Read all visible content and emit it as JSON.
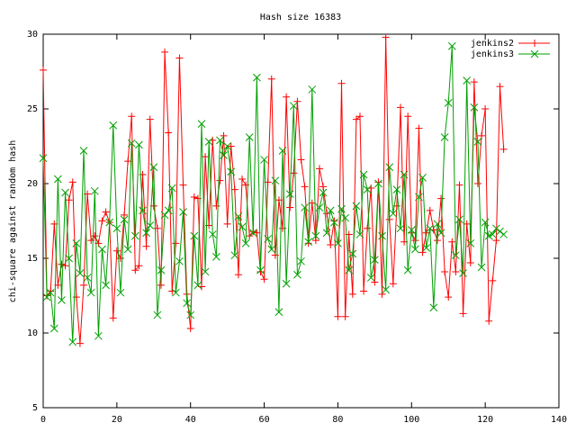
{
  "chart_data": {
    "type": "line",
    "title": "Hash size 16383",
    "y_label": "chi-square against random hash",
    "x": [
      0,
      1,
      2,
      3,
      4,
      5,
      6,
      7,
      8,
      9,
      10,
      11,
      12,
      13,
      14,
      15,
      16,
      17,
      18,
      19,
      20,
      21,
      22,
      23,
      24,
      25,
      26,
      27,
      28,
      29,
      30,
      31,
      32,
      33,
      34,
      35,
      36,
      37,
      38,
      39,
      40,
      41,
      42,
      43,
      44,
      45,
      46,
      47,
      48,
      49,
      50,
      51,
      52,
      53,
      54,
      55,
      56,
      57,
      58,
      59,
      60,
      61,
      62,
      63,
      64,
      65,
      66,
      67,
      68,
      69,
      70,
      71,
      72,
      73,
      74,
      75,
      76,
      77,
      78,
      79,
      80,
      81,
      82,
      83,
      84,
      85,
      86,
      87,
      88,
      89,
      90,
      91,
      92,
      93,
      94,
      95,
      96,
      97,
      98,
      99,
      100,
      101,
      102,
      103,
      104,
      105,
      106,
      107,
      108,
      109,
      110,
      111,
      112,
      113,
      114,
      115,
      116,
      117,
      118,
      119,
      120,
      121,
      122,
      123,
      124,
      125
    ],
    "series": [
      {
        "name": "jenkins2",
        "color": "#ff0000",
        "marker": "plus",
        "values": [
          27.6,
          12.5,
          12.8,
          17.3,
          13.2,
          14.6,
          14.5,
          18.9,
          20.1,
          12.4,
          9.3,
          13.2,
          19.3,
          16.2,
          16.5,
          16.0,
          17.5,
          18.1,
          17.4,
          11.0,
          15.5,
          15.0,
          17.9,
          21.5,
          24.5,
          14.2,
          14.5,
          20.6,
          15.8,
          24.3,
          18.5,
          17.0,
          13.2,
          28.8,
          23.4,
          12.8,
          16.0,
          28.4,
          19.9,
          12.6,
          10.3,
          19.1,
          19.0,
          13.1,
          21.8,
          17.2,
          22.9,
          18.5,
          20.2,
          23.2,
          17.3,
          22.5,
          19.6,
          13.9,
          20.3,
          19.9,
          16.5,
          16.8,
          16.7,
          14.1,
          13.6,
          20.1,
          27.0,
          15.2,
          18.9,
          17.0,
          25.8,
          18.4,
          20.7,
          25.5,
          21.6,
          19.8,
          16.0,
          18.7,
          16.2,
          21.0,
          19.8,
          18.0,
          15.9,
          17.5,
          11.1,
          26.7,
          11.1,
          16.6,
          12.6,
          24.3,
          24.5,
          12.8,
          17.0,
          19.7,
          13.4,
          20.1,
          12.6,
          29.8,
          17.6,
          13.3,
          18.5,
          25.1,
          16.1,
          24.5,
          16.7,
          16.2,
          23.7,
          15.4,
          16.7,
          18.2,
          16.9,
          16.2,
          19.0,
          14.1,
          12.4,
          16.1,
          14.1,
          19.9,
          11.3,
          17.3,
          14.7,
          26.8,
          20.0,
          23.2,
          25.0,
          10.8,
          13.5,
          16.2,
          26.5,
          22.3
        ]
      },
      {
        "name": "jenkins3",
        "color": "#00a000",
        "marker": "cross",
        "values": [
          21.7,
          12.4,
          12.7,
          10.3,
          20.3,
          12.2,
          19.4,
          15.0,
          9.4,
          16.0,
          14.0,
          22.2,
          13.7,
          12.7,
          19.5,
          9.8,
          15.6,
          13.2,
          17.4,
          23.9,
          17.0,
          12.7,
          17.6,
          15.6,
          22.7,
          16.5,
          22.6,
          18.2,
          16.7,
          17.2,
          21.1,
          11.2,
          14.2,
          17.9,
          18.2,
          19.7,
          12.7,
          14.8,
          18.1,
          12.0,
          11.2,
          16.5,
          13.2,
          24.0,
          14.1,
          22.8,
          16.6,
          15.1,
          22.9,
          21.9,
          22.5,
          20.8,
          15.2,
          17.8,
          17.1,
          16.0,
          23.1,
          16.7,
          27.1,
          14.2,
          21.6,
          16.3,
          15.6,
          20.2,
          11.4,
          22.2,
          13.3,
          19.3,
          25.2,
          13.9,
          14.8,
          18.4,
          16.1,
          26.3,
          16.5,
          18.4,
          19.4,
          16.7,
          18.2,
          17.4,
          16.0,
          18.3,
          17.7,
          14.2,
          15.3,
          18.5,
          16.6,
          20.6,
          19.6,
          13.7,
          14.9,
          20.0,
          16.5,
          12.9,
          21.1,
          18.0,
          19.6,
          17.0,
          20.6,
          14.2,
          16.9,
          15.6,
          19.1,
          20.4,
          15.7,
          17.0,
          11.7,
          17.3,
          16.7,
          23.1,
          25.4,
          29.2,
          15.2,
          17.6,
          14.0,
          26.9,
          16.0,
          25.1,
          22.8,
          14.4,
          17.4,
          16.5,
          16.6,
          17.0,
          16.8,
          16.6
        ]
      }
    ],
    "xlim": [
      0,
      140
    ],
    "xticks": [
      0,
      20,
      40,
      60,
      80,
      100,
      120,
      140
    ],
    "ylim": [
      5,
      30
    ],
    "yticks": [
      5,
      10,
      15,
      20,
      25,
      30
    ],
    "grid": false,
    "legend": "top-right"
  }
}
